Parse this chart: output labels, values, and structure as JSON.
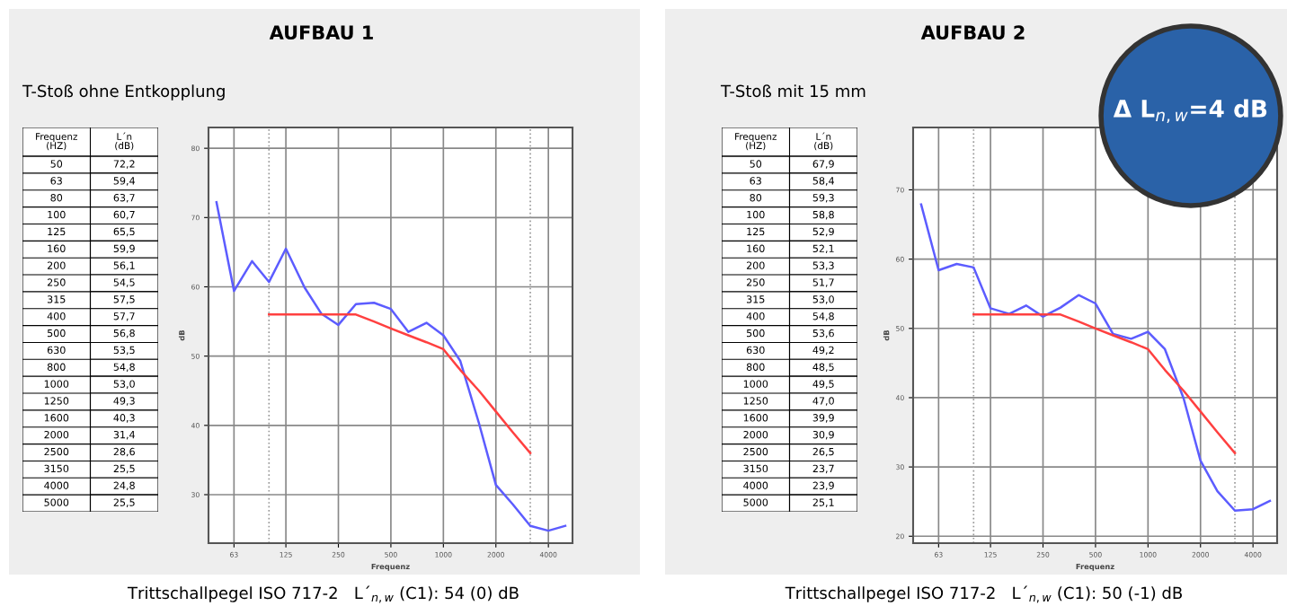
{
  "chart_data": [
    {
      "type": "other",
      "subtitle": "T-Stoß ohne Entkopplung",
      "xlabel": "Frequenz\n(HZ)",
      "ylabel": "L´n\n(dB)",
      "categories": [
        "50",
        "63",
        "80",
        "100",
        "125",
        "160",
        "200",
        "250",
        "315",
        "400",
        "500",
        "630",
        "800",
        "1000",
        "1250",
        "1600",
        "2000",
        "2500",
        "3150",
        "4000",
        "5000"
      ],
      "value_labels": [
        "72,2",
        "59,4",
        "63,7",
        "60,7",
        "65,5",
        "59,9",
        "56,1",
        "54,5",
        "57,5",
        "57,7",
        "56,8",
        "53,5",
        "54,8",
        "53,0",
        "49,3",
        "40,3",
        "31,4",
        "28,6",
        "25,5",
        "24,8",
        "25,5"
      ]
    },
    {
      "type": "line",
      "title": "AUFBAU 1",
      "xlabel": "Frequenz",
      "ylabel": "dB",
      "annotations": [
        "Trittschallpegel ISO 717-2   L´$_{n,w}$ (C1): 54 (0) dB"
      ],
      "log": "x",
      "xlim": [
        45,
        5500
      ],
      "xticks": [
        63,
        125,
        250,
        500,
        1000,
        2000,
        4000
      ],
      "ylim": [
        23,
        83
      ],
      "yticks": [
        30,
        40,
        50,
        60,
        70,
        80
      ],
      "grid": true,
      "line_style": "solid",
      "marker": "none",
      "ref_lines": [
        {
          "axis": "x",
          "value": 100,
          "color": "#999999",
          "line_style": "dotted"
        },
        {
          "axis": "x",
          "value": 3150,
          "color": "#999999",
          "line_style": "dotted"
        }
      ],
      "series": [
        {
          "color": "#5c5cff",
          "x": [
            50,
            63,
            80,
            100,
            125,
            160,
            200,
            250,
            315,
            400,
            500,
            630,
            800,
            1000,
            1250,
            1600,
            2000,
            2500,
            3150,
            4000,
            5000
          ],
          "values": [
            72.2,
            59.4,
            63.7,
            60.7,
            65.5,
            59.9,
            56.1,
            54.5,
            57.5,
            57.7,
            56.8,
            53.5,
            54.8,
            53.0,
            49.3,
            40.3,
            31.4,
            28.6,
            25.5,
            24.8,
            25.5
          ]
        },
        {
          "color": "#ff4040",
          "x": [
            100,
            125,
            160,
            200,
            250,
            315,
            400,
            500,
            630,
            800,
            1000,
            1250,
            1600,
            2000,
            2500,
            3150
          ],
          "values": [
            56,
            56,
            56,
            56,
            56,
            56,
            55,
            54,
            53,
            52,
            51,
            48,
            45,
            42,
            39,
            36
          ]
        }
      ]
    },
    {
      "type": "other",
      "subtitle": "T-Stoß mit 15 mm",
      "xlabel": "Frequenz\n(HZ)",
      "ylabel": "L´n\n(dB)",
      "categories": [
        "50",
        "63",
        "80",
        "100",
        "125",
        "160",
        "200",
        "250",
        "315",
        "400",
        "500",
        "630",
        "800",
        "1000",
        "1250",
        "1600",
        "2000",
        "2500",
        "3150",
        "4000",
        "5000"
      ],
      "value_labels": [
        "67,9",
        "58,4",
        "59,3",
        "58,8",
        "52,9",
        "52,1",
        "53,3",
        "51,7",
        "53,0",
        "54,8",
        "53,6",
        "49,2",
        "48,5",
        "49,5",
        "47,0",
        "39,9",
        "30,9",
        "26,5",
        "23,7",
        "23,9",
        "25,1"
      ]
    },
    {
      "type": "line",
      "title": "AUFBAU 2",
      "xlabel": "Frequenz",
      "ylabel": "dB",
      "annotations": [
        "Trittschallpegel ISO 717-2   L´$_{n,w}$ (C1): 50 (-1) dB",
        "Δ L$_{n,w}$=4 dB"
      ],
      "log": "x",
      "xlim": [
        45,
        5500
      ],
      "xticks": [
        63,
        125,
        250,
        500,
        1000,
        2000,
        4000
      ],
      "ylim": [
        19,
        79
      ],
      "yticks": [
        20,
        30,
        40,
        50,
        60,
        70
      ],
      "grid": true,
      "line_style": "solid",
      "marker": "none",
      "ref_lines": [
        {
          "axis": "x",
          "value": 100,
          "color": "#999999",
          "line_style": "dotted"
        },
        {
          "axis": "x",
          "value": 3150,
          "color": "#999999",
          "line_style": "dotted"
        }
      ],
      "series": [
        {
          "color": "#5c5cff",
          "x": [
            50,
            63,
            80,
            100,
            125,
            160,
            200,
            250,
            315,
            400,
            500,
            630,
            800,
            1000,
            1250,
            1600,
            2000,
            2500,
            3150,
            4000,
            5000
          ],
          "values": [
            67.9,
            58.4,
            59.3,
            58.8,
            52.9,
            52.1,
            53.3,
            51.7,
            53.0,
            54.8,
            53.6,
            49.2,
            48.5,
            49.5,
            47.0,
            39.9,
            30.9,
            26.5,
            23.7,
            23.9,
            25.1
          ]
        },
        {
          "color": "#ff4040",
          "x": [
            100,
            125,
            160,
            200,
            250,
            315,
            400,
            500,
            630,
            800,
            1000,
            1250,
            1600,
            2000,
            2500,
            3150
          ],
          "values": [
            52,
            52,
            52,
            52,
            52,
            52,
            51,
            50,
            49,
            48,
            47,
            44,
            41,
            38,
            35,
            32
          ]
        }
      ]
    }
  ]
}
